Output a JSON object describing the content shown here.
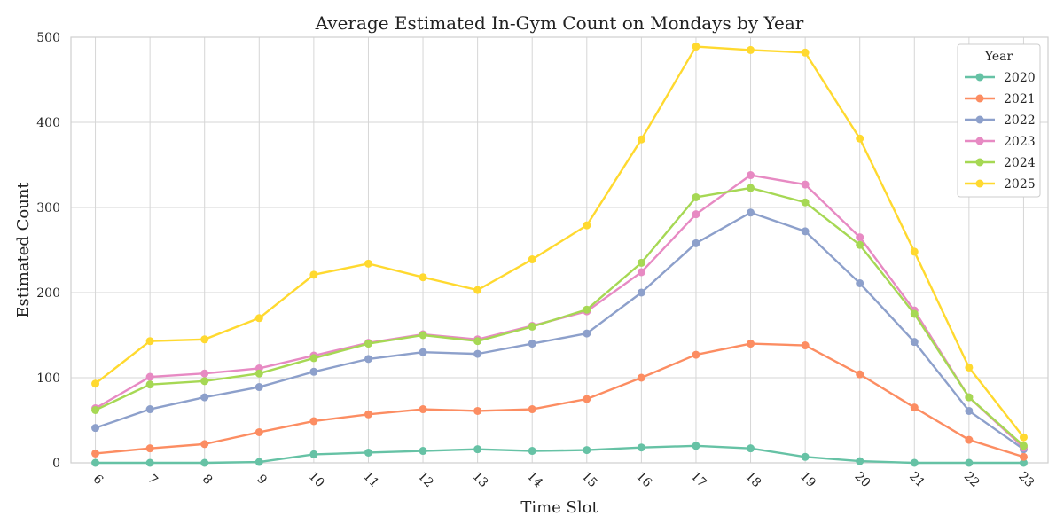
{
  "chart_data": {
    "type": "line",
    "title": "Average Estimated In-Gym Count on Mondays by Year",
    "xlabel": "Time Slot",
    "ylabel": "Estimated Count",
    "x": [
      6,
      7,
      8,
      9,
      10,
      11,
      12,
      13,
      14,
      15,
      16,
      17,
      18,
      19,
      20,
      21,
      22,
      23
    ],
    "ylim": [
      0,
      500
    ],
    "yticks": [
      0,
      100,
      200,
      300,
      400,
      500
    ],
    "grid": true,
    "legend_title": "Year",
    "legend_position": "top-right",
    "series": [
      {
        "name": "2020",
        "color": "#66c2a5",
        "values": [
          0,
          0,
          0,
          1,
          10,
          12,
          14,
          16,
          14,
          15,
          18,
          20,
          17,
          7,
          2,
          0,
          0,
          0
        ]
      },
      {
        "name": "2021",
        "color": "#fc8d62",
        "values": [
          11,
          17,
          22,
          36,
          49,
          57,
          63,
          61,
          63,
          75,
          100,
          127,
          140,
          138,
          104,
          65,
          27,
          7
        ]
      },
      {
        "name": "2022",
        "color": "#8da0cb",
        "values": [
          41,
          63,
          77,
          89,
          107,
          122,
          130,
          128,
          140,
          152,
          200,
          258,
          294,
          272,
          211,
          142,
          61,
          16
        ]
      },
      {
        "name": "2023",
        "color": "#e78ac3",
        "values": [
          64,
          101,
          105,
          111,
          126,
          141,
          151,
          145,
          161,
          178,
          224,
          292,
          338,
          327,
          265,
          179,
          77,
          18
        ]
      },
      {
        "name": "2024",
        "color": "#a6d854",
        "values": [
          62,
          92,
          96,
          105,
          123,
          140,
          150,
          143,
          160,
          180,
          235,
          312,
          323,
          306,
          256,
          175,
          77,
          20
        ]
      },
      {
        "name": "2025",
        "color": "#ffd92f",
        "values": [
          93,
          143,
          145,
          170,
          221,
          234,
          218,
          203,
          239,
          279,
          380,
          489,
          485,
          482,
          381,
          248,
          112,
          30
        ]
      }
    ]
  }
}
